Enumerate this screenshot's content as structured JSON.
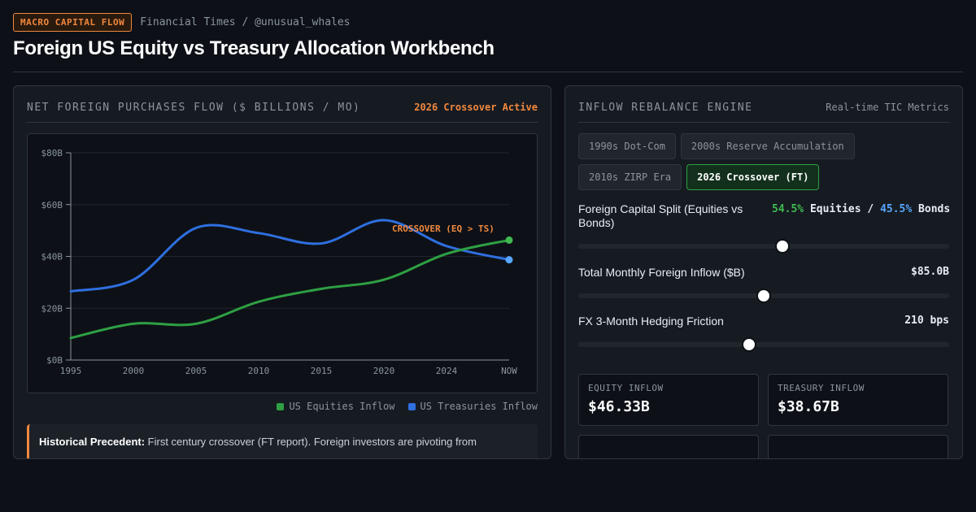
{
  "header": {
    "tag": "MACRO CAPITAL FLOW",
    "source": "Financial Times / @unusual_whales",
    "title": "Foreign US Equity vs Treasury Allocation Workbench"
  },
  "left_panel": {
    "heading": "NET FOREIGN PURCHASES FLOW ($ BILLIONS / MO)",
    "status": "2026 Crossover Active",
    "annotation": "CROSSOVER (EQ > TS)",
    "legend": [
      {
        "label": "US Equities Inflow",
        "color": "#2ea043"
      },
      {
        "label": "US Treasuries Inflow",
        "color": "#2f6fe0"
      }
    ],
    "note_bold": "Historical Precedent:",
    "note_text": " First century crossover (FT report). Foreign investors are pivoting from"
  },
  "right_panel": {
    "heading": "INFLOW REBALANCE ENGINE",
    "meta": "Real-time TIC Metrics",
    "presets": [
      {
        "label": "1990s Dot-Com",
        "active": false
      },
      {
        "label": "2000s Reserve Accumulation",
        "active": false
      },
      {
        "label": "2010s ZIRP Era",
        "active": false
      },
      {
        "label": "2026 Crossover (FT)",
        "active": true
      }
    ],
    "split": {
      "label": "Foreign Capital Split (Equities vs Bonds)",
      "equity_pct": "54.5%",
      "equity_word": "Equities",
      "sep": "/",
      "bond_pct": "45.5%",
      "bond_word": "Bonds",
      "level": 0.55
    },
    "inflow": {
      "label": "Total Monthly Foreign Inflow ($B)",
      "value": "$85.0B",
      "level": 0.5
    },
    "hedging": {
      "label": "FX 3-Month Hedging Friction",
      "value": "210 bps",
      "level": 0.46
    },
    "cards": [
      {
        "label": "EQUITY INFLOW",
        "value": "$46.33B"
      },
      {
        "label": "TREASURY INFLOW",
        "value": "$38.67B"
      }
    ]
  },
  "chart_data": {
    "type": "line",
    "x": [
      "1995",
      "2000",
      "2005",
      "2010",
      "2015",
      "2020",
      "2024",
      "NOW"
    ],
    "y_ticks": [
      "$0B",
      "$20B",
      "$40B",
      "$60B",
      "$80B"
    ],
    "ylim": [
      0,
      80
    ],
    "series": [
      {
        "name": "US Equities Inflow",
        "color": "#2ea043",
        "values": [
          8.5,
          14,
          14,
          22.5,
          27.5,
          31,
          41,
          46.3
        ]
      },
      {
        "name": "US Treasuries Inflow",
        "color": "#2f6fe0",
        "values": [
          26.5,
          31,
          51,
          49,
          45,
          54,
          44,
          38.7
        ]
      }
    ],
    "annotation": "CROSSOVER (EQ > TS)",
    "grid": true
  }
}
